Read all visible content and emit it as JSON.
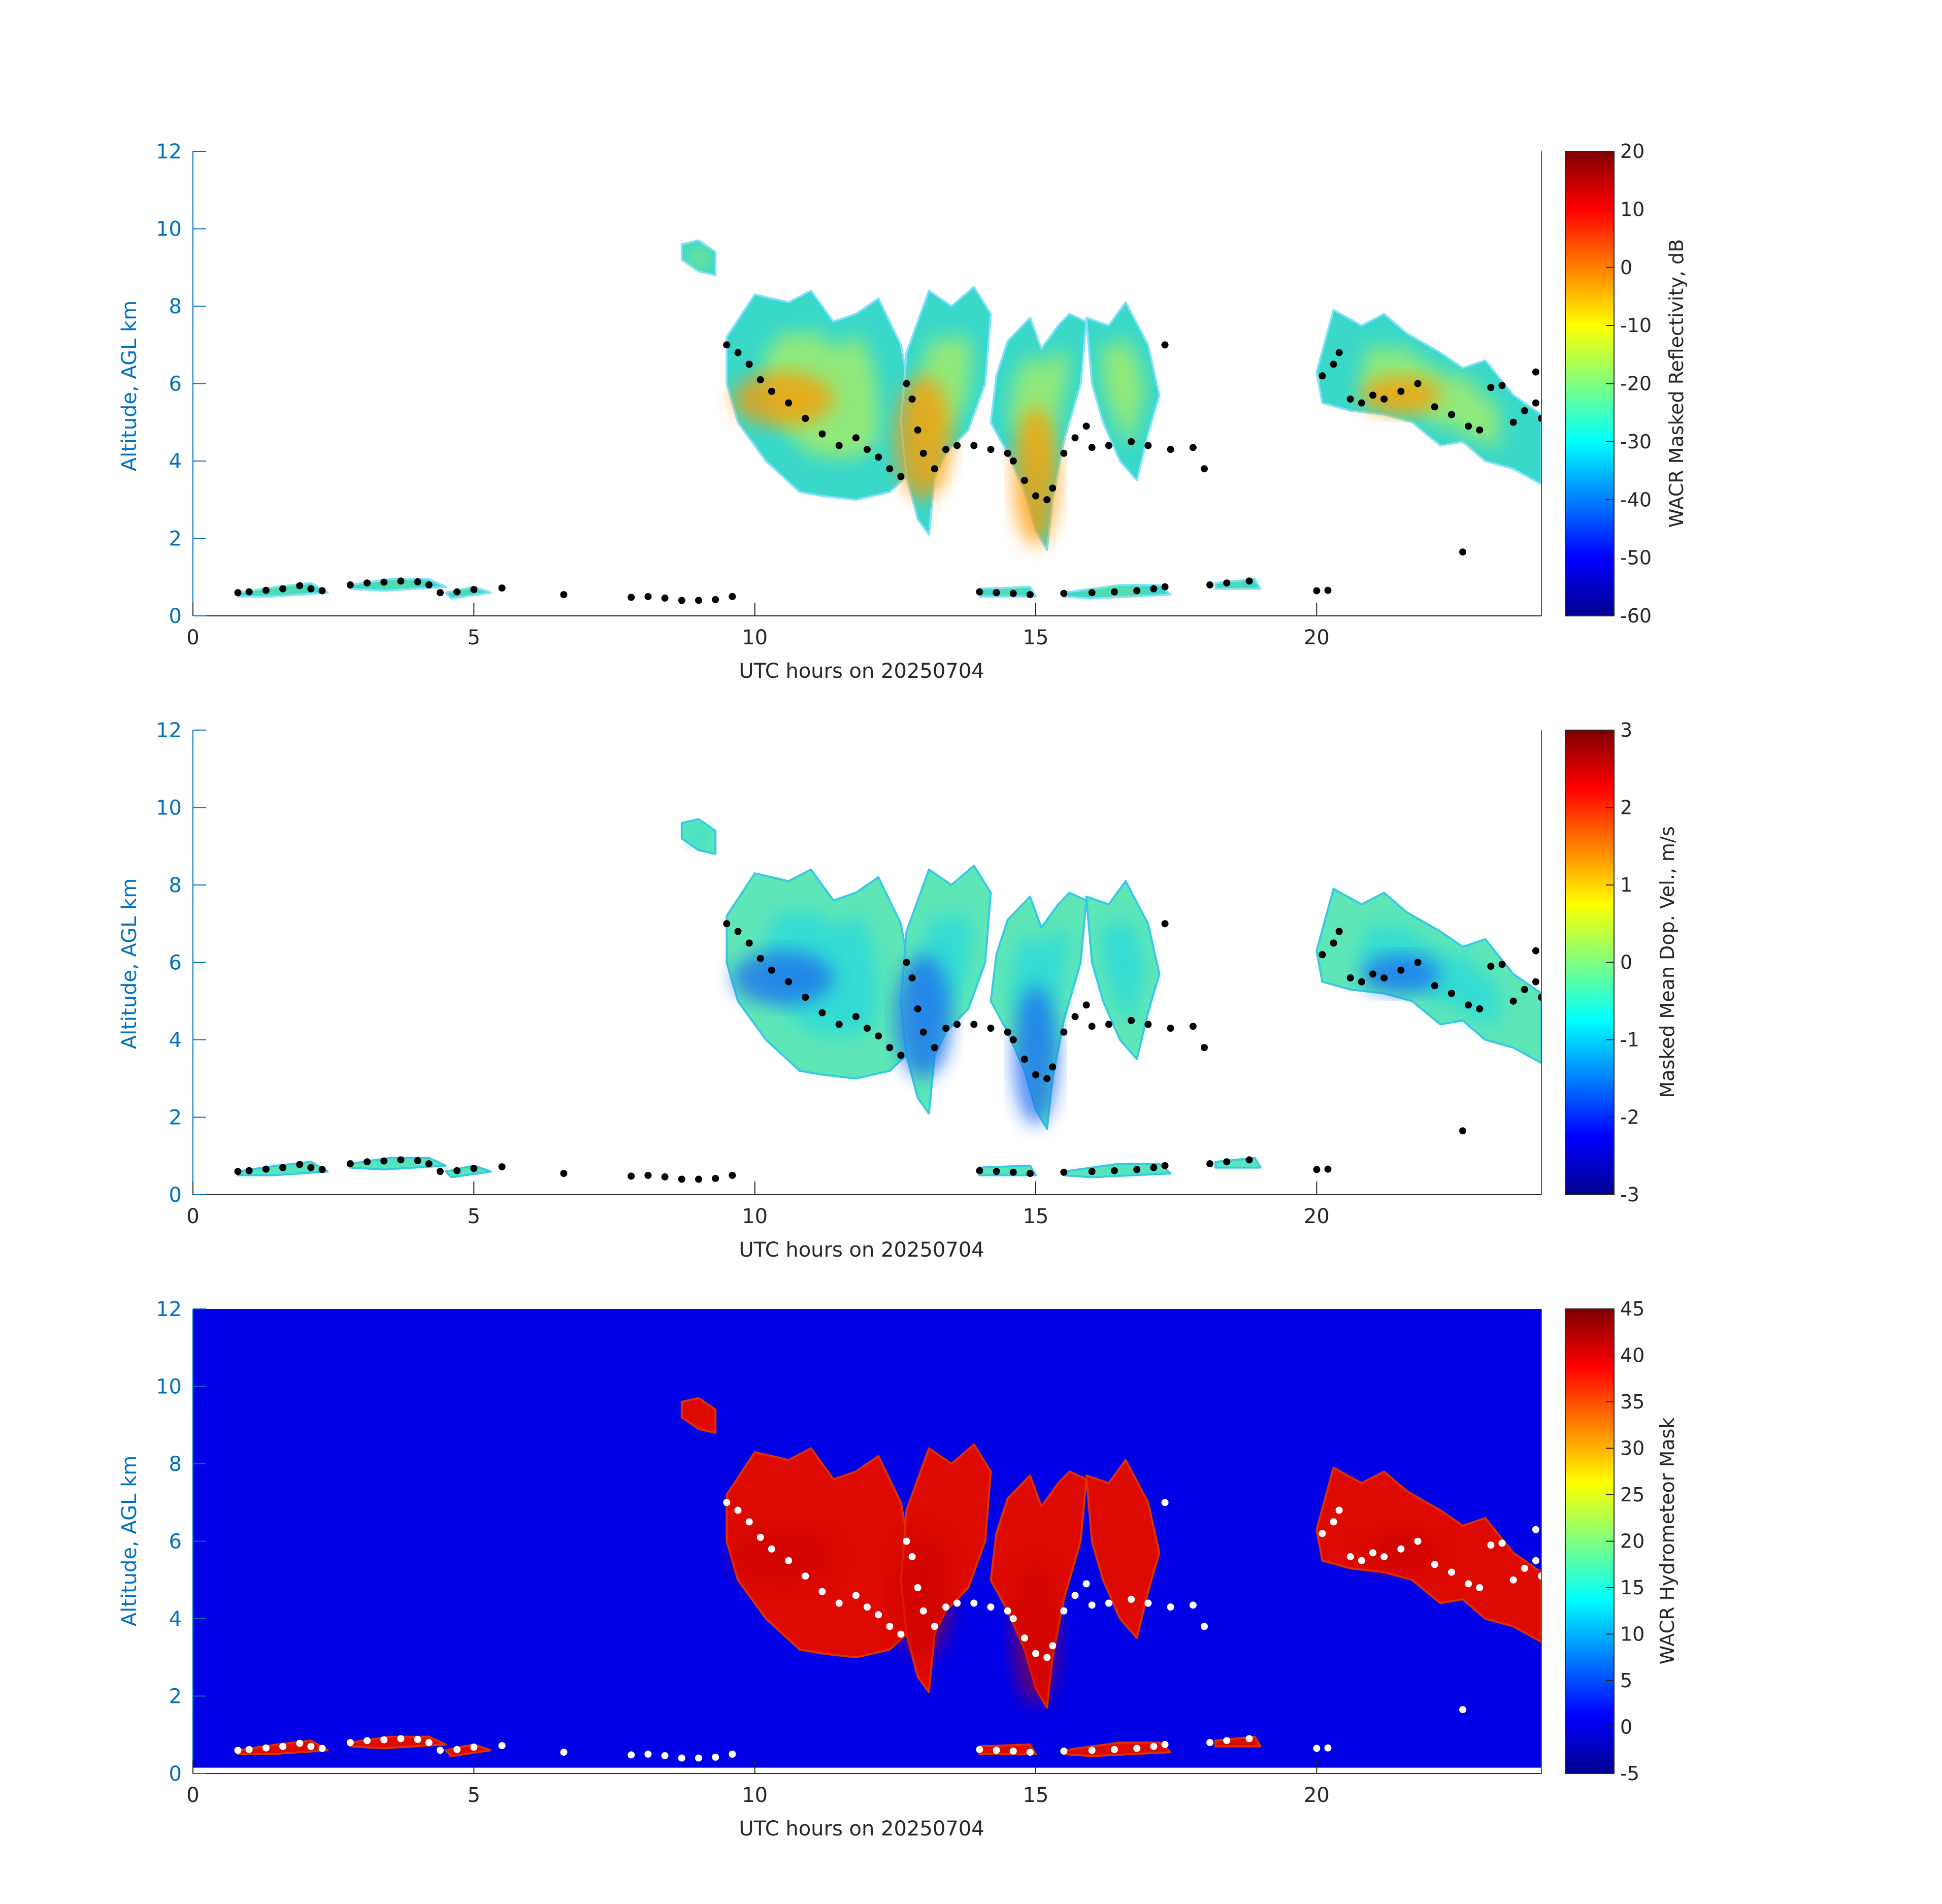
{
  "chart_data": [
    {
      "type": "heatmap",
      "field": "reflectivity",
      "xlabel": "UTC hours on 20250704",
      "ylabel": "Altitude, AGL km",
      "xlim": [
        0,
        24
      ],
      "ylim": [
        0,
        12
      ],
      "xticks": [
        0,
        5,
        10,
        15,
        20
      ],
      "yticks": [
        0,
        2,
        4,
        6,
        8,
        10,
        12
      ],
      "background": "white",
      "colorbar": {
        "label": "WACR Masked Reflectivity, dB",
        "range": [
          -60,
          20
        ],
        "ticks": [
          20,
          10,
          0,
          -10,
          -20,
          -30,
          -40,
          -50,
          -60
        ],
        "colormap": "jet"
      }
    },
    {
      "type": "heatmap",
      "field": "doppler_velocity",
      "xlabel": "UTC hours on 20250704",
      "ylabel": "Altitude, AGL km",
      "xlim": [
        0,
        24
      ],
      "ylim": [
        0,
        12
      ],
      "xticks": [
        0,
        5,
        10,
        15,
        20
      ],
      "yticks": [
        0,
        2,
        4,
        6,
        8,
        10,
        12
      ],
      "background": "white",
      "colorbar": {
        "label": "Masked Mean Dop. Vel., m/s",
        "range": [
          -3,
          3
        ],
        "ticks": [
          3,
          2,
          1,
          0,
          -1,
          -2,
          -3
        ],
        "colormap": "jet"
      }
    },
    {
      "type": "heatmap",
      "field": "hydrometeor_mask",
      "xlabel": "UTC hours on 20250704",
      "ylabel": "Altitude, AGL km",
      "xlim": [
        0,
        24
      ],
      "ylim": [
        0,
        12
      ],
      "xticks": [
        0,
        5,
        10,
        15,
        20
      ],
      "yticks": [
        0,
        2,
        4,
        6,
        8,
        10,
        12
      ],
      "background": "#0000e6",
      "colorbar": {
        "label": "WACR Hydrometeor Mask",
        "range": [
          -5,
          45
        ],
        "ticks": [
          45,
          40,
          35,
          30,
          25,
          20,
          15,
          10,
          5,
          0,
          -5
        ],
        "colormap": "jet"
      }
    }
  ],
  "cloud_regions": [
    {
      "name": "cirrus-fragment",
      "points": [
        [
          8.7,
          9.6
        ],
        [
          9.0,
          9.7
        ],
        [
          9.3,
          9.4
        ],
        [
          9.3,
          8.8
        ],
        [
          9.0,
          8.9
        ],
        [
          8.7,
          9.2
        ]
      ]
    },
    {
      "name": "upper-cloud-a",
      "points": [
        [
          9.5,
          7.2
        ],
        [
          10.0,
          8.3
        ],
        [
          10.6,
          8.1
        ],
        [
          11.0,
          8.4
        ],
        [
          11.4,
          7.6
        ],
        [
          11.8,
          7.8
        ],
        [
          12.2,
          8.2
        ],
        [
          12.6,
          7.0
        ],
        [
          12.7,
          6.2
        ],
        [
          12.8,
          4.5
        ],
        [
          12.7,
          3.6
        ],
        [
          12.4,
          3.2
        ],
        [
          11.8,
          3.0
        ],
        [
          11.2,
          3.1
        ],
        [
          10.8,
          3.2
        ],
        [
          10.2,
          4.0
        ],
        [
          9.7,
          5.0
        ],
        [
          9.5,
          6.0
        ]
      ]
    },
    {
      "name": "upper-cloud-b",
      "points": [
        [
          12.7,
          6.8
        ],
        [
          13.1,
          8.4
        ],
        [
          13.5,
          8.0
        ],
        [
          13.9,
          8.5
        ],
        [
          14.2,
          7.8
        ],
        [
          14.1,
          6.0
        ],
        [
          13.8,
          4.8
        ],
        [
          13.4,
          4.2
        ],
        [
          13.2,
          3.6
        ],
        [
          13.1,
          2.1
        ],
        [
          12.9,
          2.5
        ],
        [
          12.7,
          3.6
        ],
        [
          12.6,
          5.0
        ]
      ]
    },
    {
      "name": "upper-cloud-c",
      "points": [
        [
          14.5,
          7.1
        ],
        [
          14.9,
          7.7
        ],
        [
          15.1,
          6.9
        ],
        [
          15.4,
          7.5
        ],
        [
          15.6,
          7.8
        ],
        [
          15.9,
          7.6
        ],
        [
          15.8,
          6.0
        ],
        [
          15.5,
          4.5
        ],
        [
          15.3,
          3.0
        ],
        [
          15.2,
          1.7
        ],
        [
          15.0,
          2.2
        ],
        [
          14.8,
          3.2
        ],
        [
          14.5,
          4.2
        ],
        [
          14.2,
          5.0
        ],
        [
          14.3,
          6.2
        ]
      ]
    },
    {
      "name": "upper-cloud-d",
      "points": [
        [
          15.9,
          7.7
        ],
        [
          16.3,
          7.5
        ],
        [
          16.6,
          8.1
        ],
        [
          17.0,
          7.0
        ],
        [
          17.2,
          5.7
        ],
        [
          17.0,
          4.7
        ],
        [
          16.8,
          3.5
        ],
        [
          16.5,
          4.0
        ],
        [
          16.2,
          5.0
        ],
        [
          16.0,
          6.0
        ]
      ]
    },
    {
      "name": "upper-cloud-e",
      "points": [
        [
          20.0,
          6.3
        ],
        [
          20.3,
          7.9
        ],
        [
          20.8,
          7.5
        ],
        [
          21.2,
          7.8
        ],
        [
          21.6,
          7.3
        ],
        [
          22.2,
          6.8
        ],
        [
          22.6,
          6.4
        ],
        [
          23.0,
          6.6
        ],
        [
          23.5,
          5.7
        ],
        [
          24.0,
          5.2
        ],
        [
          24.0,
          3.4
        ],
        [
          23.5,
          3.8
        ],
        [
          23.0,
          4.0
        ],
        [
          22.6,
          4.5
        ],
        [
          22.2,
          4.4
        ],
        [
          21.7,
          5.0
        ],
        [
          21.2,
          5.2
        ],
        [
          20.6,
          5.3
        ],
        [
          20.1,
          5.5
        ]
      ]
    },
    {
      "name": "low-cloud-1",
      "points": [
        [
          0.8,
          0.6
        ],
        [
          1.5,
          0.75
        ],
        [
          2.1,
          0.85
        ],
        [
          2.4,
          0.6
        ],
        [
          1.4,
          0.5
        ],
        [
          0.8,
          0.5
        ]
      ]
    },
    {
      "name": "low-cloud-2",
      "points": [
        [
          2.8,
          0.8
        ],
        [
          3.5,
          0.95
        ],
        [
          4.2,
          0.95
        ],
        [
          4.5,
          0.75
        ],
        [
          3.4,
          0.65
        ],
        [
          2.8,
          0.7
        ]
      ]
    },
    {
      "name": "low-cloud-3",
      "points": [
        [
          4.5,
          0.6
        ],
        [
          5.0,
          0.75
        ],
        [
          5.3,
          0.6
        ],
        [
          4.6,
          0.45
        ]
      ]
    },
    {
      "name": "low-cloud-4",
      "points": [
        [
          14.0,
          0.7
        ],
        [
          14.9,
          0.75
        ],
        [
          15.0,
          0.5
        ],
        [
          14.0,
          0.5
        ]
      ]
    },
    {
      "name": "low-cloud-5",
      "points": [
        [
          15.5,
          0.6
        ],
        [
          16.5,
          0.8
        ],
        [
          17.2,
          0.8
        ],
        [
          17.4,
          0.55
        ],
        [
          16.0,
          0.45
        ],
        [
          15.5,
          0.5
        ]
      ]
    },
    {
      "name": "low-cloud-6",
      "points": [
        [
          18.2,
          0.85
        ],
        [
          18.9,
          0.95
        ],
        [
          19.0,
          0.7
        ],
        [
          18.2,
          0.7
        ]
      ]
    }
  ],
  "cloud_cores": [
    {
      "name": "core-13h",
      "center": [
        13.0,
        4.6
      ],
      "radius": [
        0.5,
        1.6
      ]
    },
    {
      "name": "core-15h",
      "center": [
        15.0,
        3.6
      ],
      "radius": [
        0.4,
        1.8
      ]
    },
    {
      "name": "core-10h",
      "center": [
        10.5,
        5.6
      ],
      "radius": [
        0.9,
        0.7
      ]
    },
    {
      "name": "core-21h",
      "center": [
        21.5,
        5.7
      ],
      "radius": [
        0.7,
        0.5
      ]
    }
  ],
  "cloud_base_points": [
    [
      0.8,
      0.6
    ],
    [
      1.0,
      0.62
    ],
    [
      1.3,
      0.66
    ],
    [
      1.6,
      0.7
    ],
    [
      1.9,
      0.78
    ],
    [
      2.1,
      0.7
    ],
    [
      2.3,
      0.65
    ],
    [
      2.8,
      0.8
    ],
    [
      3.1,
      0.85
    ],
    [
      3.4,
      0.87
    ],
    [
      3.7,
      0.9
    ],
    [
      4.0,
      0.88
    ],
    [
      4.2,
      0.8
    ],
    [
      4.4,
      0.6
    ],
    [
      4.7,
      0.62
    ],
    [
      5.0,
      0.68
    ],
    [
      5.5,
      0.72
    ],
    [
      6.6,
      0.55
    ],
    [
      7.8,
      0.48
    ],
    [
      8.1,
      0.5
    ],
    [
      8.4,
      0.46
    ],
    [
      8.7,
      0.4
    ],
    [
      9.0,
      0.4
    ],
    [
      9.3,
      0.42
    ],
    [
      9.6,
      0.5
    ],
    [
      9.5,
      7.0
    ],
    [
      9.7,
      6.8
    ],
    [
      9.9,
      6.5
    ],
    [
      10.1,
      6.1
    ],
    [
      10.3,
      5.8
    ],
    [
      10.6,
      5.5
    ],
    [
      10.9,
      5.1
    ],
    [
      11.2,
      4.7
    ],
    [
      11.5,
      4.4
    ],
    [
      11.8,
      4.6
    ],
    [
      12.0,
      4.3
    ],
    [
      12.2,
      4.1
    ],
    [
      12.4,
      3.8
    ],
    [
      12.6,
      3.6
    ],
    [
      12.7,
      6.0
    ],
    [
      12.8,
      5.6
    ],
    [
      12.9,
      4.8
    ],
    [
      13.0,
      4.2
    ],
    [
      13.2,
      3.8
    ],
    [
      13.4,
      4.3
    ],
    [
      13.6,
      4.4
    ],
    [
      13.9,
      4.4
    ],
    [
      14.2,
      4.3
    ],
    [
      14.5,
      4.2
    ],
    [
      14.6,
      4.0
    ],
    [
      14.8,
      3.5
    ],
    [
      15.0,
      3.1
    ],
    [
      15.2,
      3.0
    ],
    [
      15.3,
      3.3
    ],
    [
      15.5,
      4.2
    ],
    [
      15.7,
      4.6
    ],
    [
      15.9,
      4.9
    ],
    [
      16.0,
      4.35
    ],
    [
      16.3,
      4.4
    ],
    [
      16.7,
      4.5
    ],
    [
      17.0,
      4.4
    ],
    [
      17.4,
      4.3
    ],
    [
      17.8,
      4.35
    ],
    [
      18.0,
      3.8
    ],
    [
      17.3,
      7.0
    ],
    [
      14.0,
      0.62
    ],
    [
      14.3,
      0.6
    ],
    [
      14.6,
      0.58
    ],
    [
      14.9,
      0.55
    ],
    [
      15.5,
      0.58
    ],
    [
      16.0,
      0.6
    ],
    [
      16.4,
      0.62
    ],
    [
      16.8,
      0.65
    ],
    [
      17.1,
      0.7
    ],
    [
      17.3,
      0.75
    ],
    [
      18.1,
      0.8
    ],
    [
      18.4,
      0.85
    ],
    [
      18.8,
      0.9
    ],
    [
      20.0,
      0.65
    ],
    [
      20.2,
      0.66
    ],
    [
      20.1,
      6.2
    ],
    [
      20.3,
      6.5
    ],
    [
      20.4,
      6.8
    ],
    [
      20.6,
      5.6
    ],
    [
      20.8,
      5.5
    ],
    [
      21.0,
      5.7
    ],
    [
      21.2,
      5.6
    ],
    [
      21.5,
      5.8
    ],
    [
      21.8,
      6.0
    ],
    [
      22.1,
      5.4
    ],
    [
      22.4,
      5.2
    ],
    [
      22.7,
      4.9
    ],
    [
      22.9,
      4.8
    ],
    [
      23.1,
      5.9
    ],
    [
      23.3,
      5.95
    ],
    [
      23.5,
      5.0
    ],
    [
      23.7,
      5.3
    ],
    [
      23.9,
      5.5
    ],
    [
      24.0,
      5.1
    ],
    [
      23.9,
      6.3
    ],
    [
      22.6,
      1.65
    ]
  ]
}
